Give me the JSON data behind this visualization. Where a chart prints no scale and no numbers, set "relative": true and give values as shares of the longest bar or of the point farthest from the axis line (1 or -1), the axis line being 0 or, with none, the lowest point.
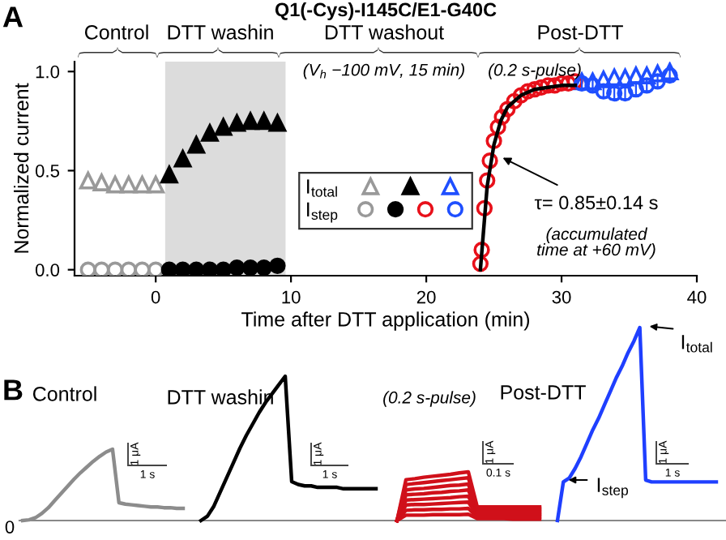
{
  "chart_data": [
    {
      "type": "scatter",
      "title": "Q1(-Cys)-I145C/E1-G40C",
      "xlabel": "Time after DTT application (min)",
      "ylabel": "Normalized current",
      "xlim": [
        -6,
        40
      ],
      "xticks": [
        0,
        10,
        20,
        30,
        40
      ],
      "ylim": [
        -0.03,
        1.05
      ],
      "yticks": [
        {
          "value": 0,
          "label": "0.0"
        },
        0.5,
        {
          "value": 1,
          "label": "1.0"
        }
      ],
      "grid": false,
      "legend": "center",
      "bands": [
        {
          "axis": "x",
          "from": 0.7,
          "to": 9.6,
          "color": "#dcdcdc"
        }
      ],
      "series": [
        {
          "name": "I$_{total}$",
          "color": "#999999",
          "marker": "triangle",
          "x": [
            -5,
            -4,
            -3,
            -2,
            -1,
            0
          ],
          "values": [
            0.45,
            0.44,
            0.43,
            0.43,
            0.43,
            0.43
          ]
        },
        {
          "color": "#000000",
          "marker": "triangle",
          "x": [
            1,
            2,
            3,
            4,
            5,
            6,
            7,
            8,
            9
          ],
          "values": [
            0.48,
            0.56,
            0.63,
            0.69,
            0.72,
            0.74,
            0.75,
            0.75,
            0.74
          ]
        },
        {
          "color": "#1f4fff",
          "marker": "triangle",
          "x": [
            31.5,
            32.3,
            33.1,
            33.9,
            34.7,
            35.5,
            36.3,
            37.1,
            38
          ],
          "values": [
            0.95,
            0.95,
            0.96,
            0.97,
            0.97,
            0.98,
            0.98,
            0.99,
            1.0
          ]
        },
        {
          "name": "I$_{step}$",
          "color": "#999999",
          "marker": "circle",
          "x": [
            -5,
            -4,
            -3,
            -2,
            -1,
            0
          ],
          "values": [
            0,
            0,
            0,
            0,
            0,
            0
          ]
        },
        {
          "color": "#000000",
          "marker": "circle",
          "x": [
            1,
            2,
            3,
            4,
            5,
            6,
            7,
            8,
            9
          ],
          "values": [
            0,
            0,
            0,
            0,
            0,
            0.01,
            0.01,
            0.01,
            0.02
          ]
        },
        {
          "color": "#e8101a",
          "marker": "circle",
          "x": [
            24.0,
            24.1,
            24.3,
            24.5,
            24.7,
            25,
            25.3,
            25.6,
            26,
            26.5,
            27,
            27.5,
            28,
            28.5,
            29,
            29.5,
            30,
            30.5,
            31
          ],
          "values": [
            0.03,
            0.1,
            0.31,
            0.45,
            0.55,
            0.65,
            0.72,
            0.77,
            0.81,
            0.85,
            0.88,
            0.9,
            0.91,
            0.92,
            0.93,
            0.93,
            0.94,
            0.94,
            0.95
          ]
        },
        {
          "color": "#1f4fff",
          "marker": "circle",
          "x": [
            31.5,
            32.3,
            33.1,
            33.9,
            34.7,
            35.5,
            36.3,
            37.1,
            38
          ],
          "values": [
            0.94,
            0.93,
            0.9,
            0.89,
            0.89,
            0.91,
            0.93,
            0.95,
            0.98
          ],
          "errors": [
            0.03,
            0.03,
            0.03,
            0.03,
            0.03,
            0.03,
            0.03,
            0.03,
            0.03
          ]
        },
        {
          "type": "line",
          "color": "#000000",
          "marker": "none",
          "x": [
            24,
            24.5,
            25,
            25.5,
            26,
            27,
            28,
            29,
            30,
            31
          ],
          "values": [
            0,
            0.42,
            0.63,
            0.75,
            0.82,
            0.88,
            0.91,
            0.92,
            0.93,
            0.93
          ]
        }
      ],
      "annotations": [
        "A",
        "Control",
        "DTT washin",
        "DTT washout",
        "Post-DTT",
        "(V$_{h}$ −100 mV, 15 min)",
        "(0.2 s-pulse)",
        {
          "text": "τ= 0.85±0.14 s",
          "x": 25.5,
          "y": 0.57
        },
        "(accumulated\ntime at +60 mV)"
      ]
    },
    {
      "type": "line",
      "relative": true,
      "marker": "none",
      "title": "Control",
      "categories": [
        null,
        null,
        null,
        null,
        null,
        null,
        null,
        null,
        null,
        null,
        null,
        null,
        null,
        null,
        null,
        null,
        null,
        null,
        null,
        null,
        null,
        null,
        null,
        null,
        null,
        null
      ],
      "series": [
        {
          "color": "#8c8c8c",
          "values": [
            0,
            0.01,
            0.04,
            0.1,
            0.18,
            0.28,
            0.38,
            0.48,
            0.58,
            0.67,
            0.75,
            0.83,
            0.9,
            0.96,
            1.0,
            0.25,
            0.23,
            0.22,
            0.21,
            0.2,
            0.19,
            0.19,
            0.18,
            0.18,
            0.17,
            0.17
          ]
        }
      ],
      "annotations": [
        "B",
        "0",
        "1 μA",
        "1 s"
      ]
    },
    {
      "type": "line",
      "relative": true,
      "marker": "none",
      "title": "DTT washin",
      "categories": [
        null,
        null,
        null,
        null,
        null,
        null,
        null,
        null,
        null,
        null,
        null,
        null,
        null,
        null,
        null,
        null,
        null,
        null,
        null,
        null,
        null,
        null,
        null,
        null,
        null,
        null,
        null,
        null
      ],
      "series": [
        {
          "color": "#000000",
          "values": [
            0,
            0.03,
            0.1,
            0.2,
            0.3,
            0.4,
            0.5,
            0.59,
            0.67,
            0.75,
            0.82,
            0.88,
            0.94,
            1.0,
            0.27,
            0.25,
            0.24,
            0.24,
            0.23,
            0.23,
            0.23,
            0.23,
            0.22,
            0.22,
            0.22,
            0.22,
            0.22,
            0.22
          ]
        }
      ],
      "annotations": [
        "1 μA",
        "1 s"
      ]
    },
    {
      "type": "line",
      "relative": true,
      "marker": "none",
      "categories": [
        null,
        null,
        null,
        null,
        null,
        null,
        null,
        null,
        null,
        null,
        null,
        null,
        null,
        null,
        null,
        null,
        null
      ],
      "series": [
        {
          "color": "#d0101a",
          "values": [
            0,
            0.11,
            0.11,
            0.11,
            0.12,
            0.12,
            0.12,
            0.12,
            0.13,
            0.04,
            0.04,
            0.04,
            0.04,
            0.03,
            0.03,
            0.03,
            0.03
          ]
        },
        {
          "color": "#d0101a",
          "values": [
            0,
            0.21,
            0.22,
            0.22,
            0.23,
            0.23,
            0.24,
            0.24,
            0.25,
            0.07,
            0.07,
            0.07,
            0.07,
            0.07,
            0.07,
            0.07,
            0.07
          ]
        },
        {
          "color": "#d0101a",
          "values": [
            0,
            0.32,
            0.33,
            0.33,
            0.34,
            0.35,
            0.36,
            0.37,
            0.38,
            0.11,
            0.11,
            0.11,
            0.11,
            0.11,
            0.11,
            0.11,
            0.11
          ]
        },
        {
          "color": "#d0101a",
          "values": [
            0,
            0.42,
            0.43,
            0.44,
            0.45,
            0.46,
            0.47,
            0.49,
            0.5,
            0.14,
            0.14,
            0.14,
            0.14,
            0.14,
            0.14,
            0.14,
            0.14
          ]
        },
        {
          "color": "#d0101a",
          "values": [
            0,
            0.53,
            0.54,
            0.55,
            0.57,
            0.58,
            0.6,
            0.61,
            0.63,
            0.18,
            0.18,
            0.18,
            0.18,
            0.18,
            0.18,
            0.18,
            0.18
          ]
        },
        {
          "color": "#d0101a",
          "values": [
            0,
            0.63,
            0.65,
            0.66,
            0.68,
            0.7,
            0.72,
            0.73,
            0.75,
            0.21,
            0.21,
            0.21,
            0.21,
            0.21,
            0.21,
            0.21,
            0.21
          ]
        },
        {
          "color": "#d0101a",
          "values": [
            0,
            0.74,
            0.76,
            0.78,
            0.8,
            0.82,
            0.84,
            0.86,
            0.88,
            0.25,
            0.25,
            0.25,
            0.25,
            0.25,
            0.25,
            0.25,
            0.25
          ]
        },
        {
          "color": "#d0101a",
          "values": [
            0,
            0.84,
            0.86,
            0.89,
            0.91,
            0.93,
            0.95,
            0.98,
            1.0,
            0.28,
            0.28,
            0.28,
            0.28,
            0.28,
            0.28,
            0.28,
            0.28
          ]
        }
      ],
      "annotations": [
        "(0.2 s-pulse)",
        "1 μA",
        "0.1 s"
      ]
    },
    {
      "type": "line",
      "relative": true,
      "marker": "none",
      "title": "Post-DTT",
      "categories": [
        null,
        null,
        null,
        null,
        null,
        null,
        null,
        null,
        null,
        null,
        null,
        null,
        null,
        null,
        null,
        null,
        null,
        null,
        null,
        null,
        null,
        null,
        null,
        null,
        null,
        null,
        null,
        null
      ],
      "series": [
        {
          "color": "#1f3fff",
          "values": [
            0,
            0.2,
            0.22,
            0.27,
            0.33,
            0.4,
            0.47,
            0.53,
            0.6,
            0.67,
            0.74,
            0.8,
            0.87,
            0.93,
            1.0,
            0.21,
            0.2,
            0.2,
            0.2,
            0.2,
            0.2,
            0.2,
            0.2,
            0.2,
            0.2,
            0.2,
            0.2,
            0.2
          ]
        }
      ],
      "annotations": [
        "I$_{total}$",
        "I$_{step}$",
        "1 μA",
        "1 s"
      ]
    }
  ]
}
